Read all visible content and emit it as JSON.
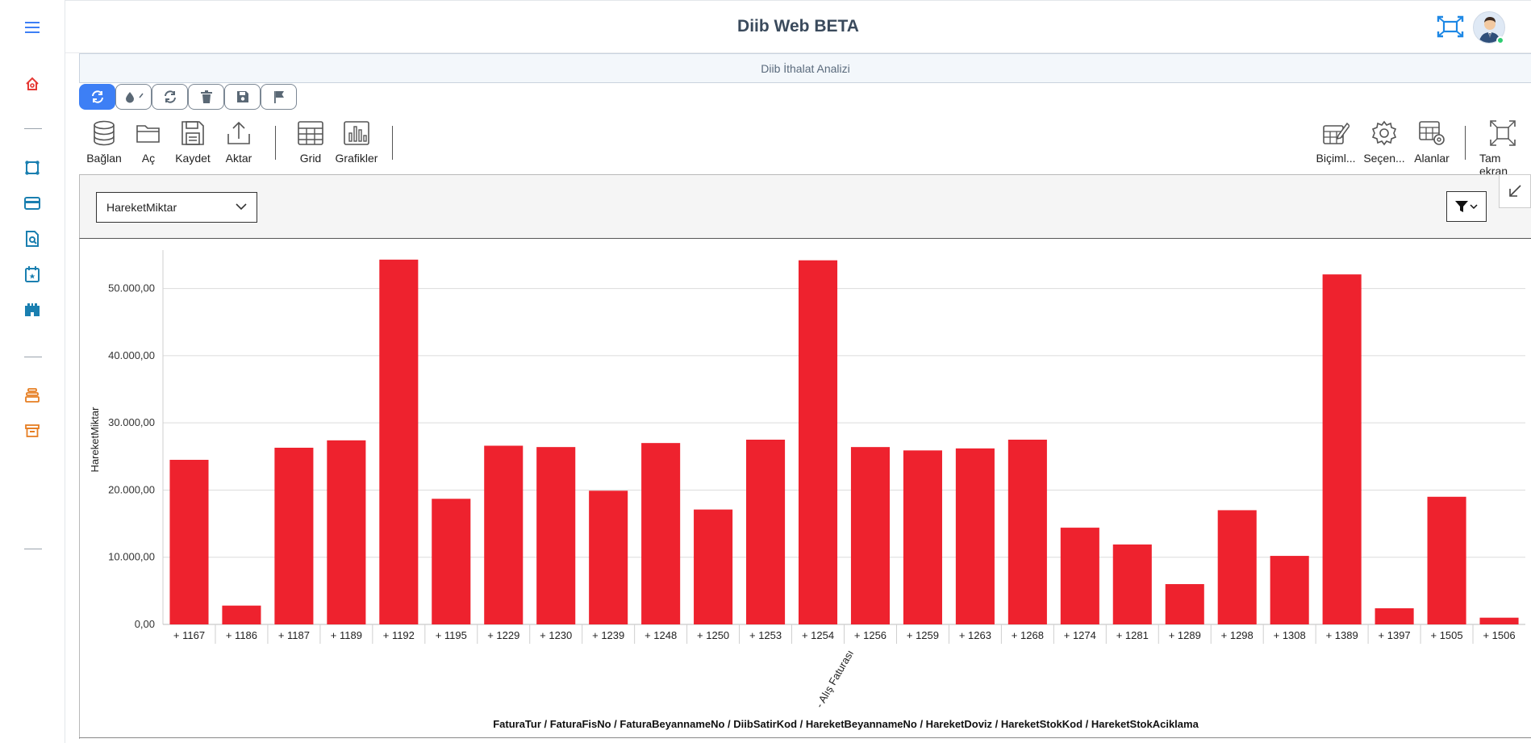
{
  "header": {
    "title": "Diib Web BETA"
  },
  "sidebar": {
    "icons": [
      "menu-icon",
      "home-icon",
      "nodes-icon",
      "card-icon",
      "search-doc-icon",
      "calendar-icon",
      "castle-icon",
      "stack-icon",
      "archive-icon"
    ]
  },
  "report": {
    "title": "Diib İthalat Analizi"
  },
  "ribbon": {
    "connect": "Bağlan",
    "open": "Aç",
    "save": "Kaydet",
    "export": "Aktar",
    "grid": "Grid",
    "charts": "Grafikler",
    "format": "Biçiml...",
    "options": "Seçen...",
    "fields": "Alanlar",
    "fullscreen": "Tam ekran"
  },
  "measure": {
    "selected": "HareketMiktar"
  },
  "colors": {
    "bar": "#ee222e",
    "accent": "#3d7ff5"
  },
  "chart_data": {
    "type": "bar",
    "ylabel": "HareketMiktar",
    "xlabel": "FaturaTur / FaturaFisNo / FaturaBeyannameNo / DiibSatirKod / HareketBeyannameNo / HareketDoviz / HareketStokKod / HareketStokAciklama",
    "group_label": "- Alış Faturası",
    "categories": [
      "+ 1167",
      "+ 1186",
      "+ 1187",
      "+ 1189",
      "+ 1192",
      "+ 1195",
      "+ 1229",
      "+ 1230",
      "+ 1239",
      "+ 1248",
      "+ 1250",
      "+ 1253",
      "+ 1254",
      "+ 1256",
      "+ 1259",
      "+ 1263",
      "+ 1268",
      "+ 1274",
      "+ 1281",
      "+ 1289",
      "+ 1298",
      "+ 1308",
      "+ 1389",
      "+ 1397",
      "+ 1505",
      "+ 1506"
    ],
    "values": [
      24500,
      2800,
      26300,
      27400,
      54300,
      18700,
      26600,
      26400,
      19900,
      27000,
      17100,
      27500,
      54200,
      26400,
      25900,
      26200,
      27500,
      14400,
      11900,
      6000,
      17000,
      10200,
      52100,
      2400,
      19000,
      1000
    ],
    "yticks": [
      "0,00",
      "10.000,00",
      "20.000,00",
      "30.000,00",
      "40.000,00",
      "50.000,00"
    ],
    "ytick_values": [
      0,
      10000,
      20000,
      30000,
      40000,
      50000
    ],
    "ylim": [
      0,
      55000
    ],
    "grid": true
  }
}
